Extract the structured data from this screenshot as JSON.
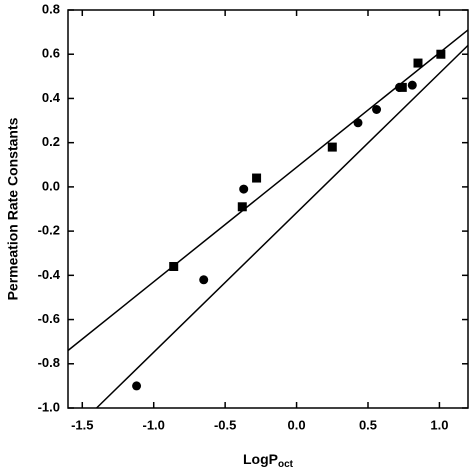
{
  "chart_data": {
    "type": "scatter",
    "x_label": "LogP",
    "x_label_sub": "oct",
    "y_label": "Permeation Rate Constants",
    "xlim": [
      -1.6,
      1.2
    ],
    "ylim": [
      -1.0,
      0.8
    ],
    "xticks": [
      -1.5,
      {
        "value": -1.0,
        "label": "-1.0"
      },
      -0.5,
      {
        "value": 0,
        "label": "0.0"
      },
      0.5,
      {
        "value": 1.0,
        "label": "1.0"
      }
    ],
    "yticks": [
      {
        "value": -1.0,
        "label": "-1.0"
      },
      -0.8,
      -0.6,
      -0.4,
      -0.2,
      {
        "value": 0,
        "label": "0.0"
      },
      0.2,
      0.4,
      0.6,
      0.8
    ],
    "series": [
      {
        "marker": "square",
        "color": "#000000",
        "x": [
          -0.86,
          -0.38,
          -0.28,
          0.25,
          0.74,
          0.85,
          1.01
        ],
        "values": [
          -0.36,
          -0.09,
          0.04,
          0.18,
          0.45,
          0.56,
          0.6
        ],
        "fit": {
          "x": [
            -1.6,
            1.2
          ],
          "values": [
            -0.74,
            0.71
          ]
        }
      },
      {
        "marker": "circle",
        "color": "#000000",
        "x": [
          -1.12,
          -0.65,
          -0.37,
          0.43,
          0.56,
          0.72,
          0.81
        ],
        "values": [
          -0.9,
          -0.42,
          -0.01,
          0.29,
          0.35,
          0.45,
          0.46
        ],
        "fit": {
          "x": [
            -1.4,
            1.2
          ],
          "values": [
            -1.0,
            0.64
          ]
        }
      }
    ]
  }
}
